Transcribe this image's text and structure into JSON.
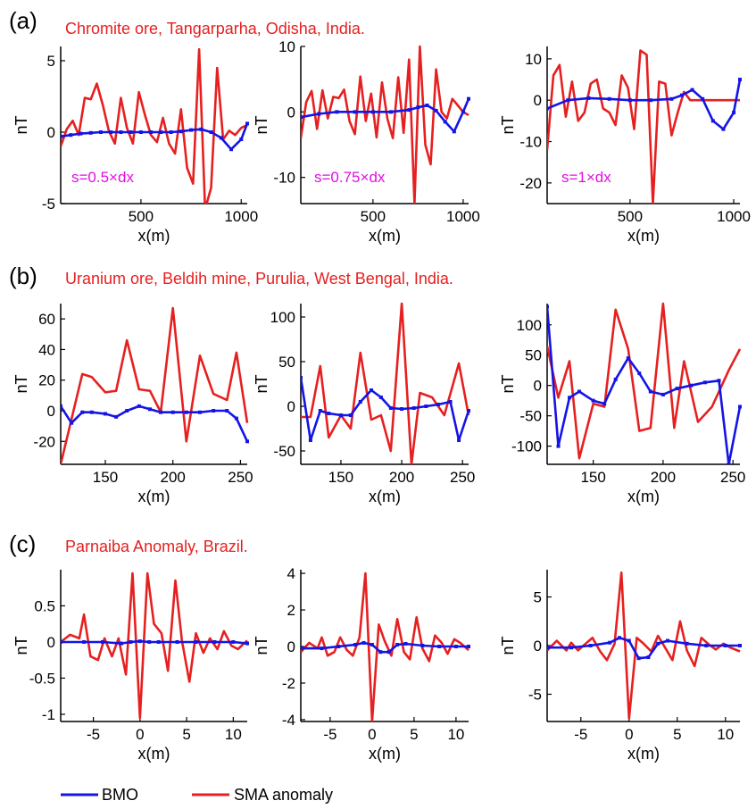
{
  "colors": {
    "bmo": "#1414e6",
    "sma": "#e62020",
    "title": "#e62020",
    "annotation": "#e010e0"
  },
  "legend": {
    "bmo_label": "BMO",
    "sma_label": "SMA anomaly"
  },
  "rows": [
    {
      "label": "(a)",
      "title": "Chromite ore, Tangarparha, Odisha, India."
    },
    {
      "label": "(b)",
      "title": "Uranium ore, Beldih mine, Purulia, West Bengal, India."
    },
    {
      "label": "(c)",
      "title": "Parnaiba Anomaly, Brazil."
    }
  ],
  "chart_data": [
    {
      "type": "line",
      "row": 0,
      "col": 0,
      "xlabel": "x(m)",
      "ylabel": "nT",
      "xlim": [
        100,
        1030
      ],
      "ylim": [
        -5,
        6
      ],
      "xticks": [
        500,
        1000
      ],
      "yticks": [
        -5,
        0,
        5
      ],
      "annotation": "s=0.5×dx",
      "series": [
        {
          "name": "BMO",
          "x": [
            100,
            150,
            200,
            250,
            300,
            350,
            400,
            450,
            500,
            550,
            600,
            650,
            700,
            750,
            800,
            850,
            900,
            950,
            1000,
            1030
          ],
          "y": [
            -0.3,
            -0.2,
            -0.1,
            -0.05,
            0,
            0,
            0,
            0,
            0,
            0,
            0,
            0,
            0.05,
            0.15,
            0.2,
            0,
            -0.4,
            -1.2,
            -0.5,
            0.6
          ]
        },
        {
          "name": "SMA anomaly",
          "x": [
            100,
            130,
            160,
            190,
            220,
            250,
            280,
            310,
            340,
            370,
            400,
            430,
            460,
            490,
            520,
            550,
            580,
            610,
            640,
            670,
            700,
            730,
            760,
            790,
            820,
            850,
            880,
            910,
            940,
            970,
            1000,
            1030
          ],
          "y": [
            -1,
            0.2,
            0.8,
            -0.2,
            2.4,
            2.3,
            3.4,
            1.9,
            0.1,
            -0.8,
            2.4,
            0.3,
            -0.8,
            2.8,
            1.2,
            -0.2,
            -0.7,
            1,
            -0.8,
            -1.5,
            1.6,
            -2.5,
            -3.6,
            5.8,
            -5.4,
            -3.9,
            4.5,
            -0.5,
            0.1,
            -0.2,
            0.3,
            0.5
          ]
        }
      ]
    },
    {
      "type": "line",
      "row": 0,
      "col": 1,
      "xlabel": "x(m)",
      "ylabel": "nT",
      "xlim": [
        100,
        1030
      ],
      "ylim": [
        -14,
        10
      ],
      "xticks": [
        500,
        1000
      ],
      "yticks": [
        -10,
        0,
        10
      ],
      "annotation": "s=0.75×dx",
      "series": [
        {
          "name": "BMO",
          "x": [
            100,
            200,
            300,
            400,
            500,
            600,
            700,
            750,
            800,
            850,
            900,
            950,
            1000,
            1030
          ],
          "y": [
            -0.8,
            -0.3,
            0,
            0,
            0,
            0,
            0.3,
            0.7,
            1,
            0.2,
            -1.5,
            -3,
            0,
            2
          ]
        },
        {
          "name": "SMA anomaly",
          "x": [
            100,
            130,
            160,
            190,
            220,
            250,
            280,
            310,
            340,
            370,
            400,
            430,
            460,
            490,
            520,
            550,
            580,
            610,
            640,
            670,
            700,
            730,
            760,
            790,
            820,
            850,
            880,
            910,
            940,
            970,
            1000,
            1030
          ],
          "y": [
            -4,
            1.5,
            3.2,
            -2.6,
            3.3,
            -1,
            2.3,
            2.1,
            3.4,
            -1.4,
            -3.4,
            5.4,
            -1.4,
            2.8,
            -3.9,
            4.5,
            -1,
            -4,
            5.3,
            -3.2,
            8,
            -14,
            10,
            -5,
            -8,
            6.5,
            0,
            -1,
            2,
            1,
            0,
            -0.5
          ]
        }
      ]
    },
    {
      "type": "line",
      "row": 0,
      "col": 2,
      "xlabel": "x(m)",
      "ylabel": "nT",
      "xlim": [
        100,
        1030
      ],
      "ylim": [
        -25,
        13
      ],
      "xticks": [
        500,
        1000
      ],
      "yticks": [
        -20,
        -10,
        0,
        10
      ],
      "annotation": "s=1×dx",
      "series": [
        {
          "name": "BMO",
          "x": [
            100,
            200,
            300,
            400,
            500,
            600,
            700,
            750,
            800,
            850,
            900,
            950,
            1000,
            1030
          ],
          "y": [
            -2,
            0,
            0.5,
            0.3,
            0,
            0,
            0.3,
            1.2,
            2.5,
            0.3,
            -5,
            -7,
            -3,
            5
          ]
        },
        {
          "name": "SMA anomaly",
          "x": [
            100,
            130,
            160,
            190,
            220,
            250,
            280,
            310,
            340,
            370,
            400,
            430,
            460,
            490,
            520,
            550,
            580,
            610,
            640,
            670,
            700,
            730,
            760,
            790,
            820,
            850,
            880,
            910,
            940,
            970,
            1000,
            1030
          ],
          "y": [
            -12,
            6,
            8.5,
            -4,
            4.5,
            -5,
            -3,
            4,
            5,
            -2,
            -3,
            -6,
            6,
            3,
            -7,
            12,
            11,
            -25,
            4.5,
            4,
            -8.5,
            -3,
            2,
            0,
            0,
            0,
            0,
            0,
            0,
            0,
            0,
            0
          ]
        }
      ]
    },
    {
      "type": "line",
      "row": 1,
      "col": 0,
      "xlabel": "x(m)",
      "ylabel": "nT",
      "xlim": [
        117,
        255
      ],
      "ylim": [
        -35,
        70
      ],
      "xticks": [
        150,
        200,
        250
      ],
      "yticks": [
        -20,
        0,
        20,
        40,
        60
      ],
      "series": [
        {
          "name": "BMO",
          "x": [
            117,
            125,
            133,
            140,
            150,
            158,
            166,
            175,
            183,
            191,
            200,
            210,
            220,
            230,
            240,
            247,
            255
          ],
          "y": [
            3,
            -8,
            -1,
            -1,
            -2,
            -4,
            0,
            3,
            1,
            -1,
            -1,
            -1,
            -1,
            0,
            0,
            -5,
            -20
          ]
        },
        {
          "name": "SMA anomaly",
          "x": [
            117,
            133,
            140,
            150,
            158,
            166,
            175,
            183,
            191,
            200,
            210,
            220,
            230,
            240,
            247,
            255
          ],
          "y": [
            -35,
            24,
            22,
            12,
            13,
            46,
            14,
            13,
            -1,
            67,
            -20,
            36,
            11,
            7,
            38,
            -8
          ]
        }
      ]
    },
    {
      "type": "line",
      "row": 1,
      "col": 1,
      "xlabel": "x(m)",
      "ylabel": "nT",
      "xlim": [
        117,
        255
      ],
      "ylim": [
        -65,
        115
      ],
      "xticks": [
        150,
        200,
        250
      ],
      "yticks": [
        -50,
        0,
        50,
        100
      ],
      "series": [
        {
          "name": "BMO",
          "x": [
            117,
            125,
            133,
            140,
            150,
            158,
            166,
            175,
            183,
            191,
            200,
            210,
            220,
            230,
            240,
            247,
            255
          ],
          "y": [
            32,
            -38,
            -5,
            -8,
            -10,
            -10,
            5,
            18,
            10,
            -2,
            -3,
            -2,
            0,
            2,
            5,
            -38,
            -5
          ]
        },
        {
          "name": "SMA anomaly",
          "x": [
            117,
            125,
            133,
            140,
            150,
            158,
            166,
            175,
            183,
            191,
            200,
            208,
            215,
            225,
            235,
            247,
            255
          ],
          "y": [
            -12,
            -12,
            45,
            -35,
            -10,
            -25,
            60,
            -15,
            -10,
            -50,
            115,
            -65,
            15,
            10,
            -10,
            48,
            -10
          ]
        }
      ]
    },
    {
      "type": "line",
      "row": 1,
      "col": 2,
      "xlabel": "x(m)",
      "ylabel": "nT",
      "xlim": [
        117,
        255
      ],
      "ylim": [
        -130,
        135
      ],
      "xticks": [
        150,
        200,
        250
      ],
      "yticks": [
        -100,
        -50,
        0,
        50,
        100
      ],
      "series": [
        {
          "name": "BMO",
          "x": [
            117,
            125,
            133,
            140,
            150,
            158,
            166,
            175,
            183,
            191,
            200,
            210,
            220,
            230,
            240,
            247,
            255
          ],
          "y": [
            130,
            -100,
            -20,
            -10,
            -25,
            -30,
            10,
            45,
            20,
            -10,
            -15,
            -5,
            0,
            5,
            8,
            -130,
            -35
          ]
        },
        {
          "name": "SMA anomaly",
          "x": [
            117,
            125,
            133,
            140,
            150,
            158,
            166,
            175,
            183,
            191,
            200,
            208,
            215,
            225,
            235,
            247,
            255
          ],
          "y": [
            65,
            -20,
            40,
            -120,
            -30,
            -35,
            125,
            60,
            -75,
            -70,
            135,
            -70,
            40,
            -60,
            -35,
            25,
            60
          ]
        }
      ]
    },
    {
      "type": "line",
      "row": 2,
      "col": 0,
      "xlabel": "x(m)",
      "ylabel": "nT",
      "xlim": [
        -8.5,
        11.5
      ],
      "ylim": [
        -1.1,
        1.0
      ],
      "xticks": [
        -5,
        0,
        5,
        10
      ],
      "yticks": [
        -1,
        -0.5,
        0,
        0.5
      ],
      "series": [
        {
          "name": "BMO",
          "x": [
            -8.5,
            -6,
            -4,
            -2,
            -1,
            0,
            1,
            2,
            4,
            6,
            8,
            10,
            11.5
          ],
          "y": [
            0,
            0,
            0,
            -0.02,
            0,
            0.01,
            0,
            0,
            0,
            0,
            0,
            0,
            -0.02
          ]
        },
        {
          "name": "SMA anomaly",
          "x": [
            -8.5,
            -7.5,
            -6.5,
            -6,
            -5.3,
            -4.5,
            -3.8,
            -3,
            -2.3,
            -1.5,
            -0.8,
            0,
            0.8,
            1.5,
            2.3,
            3,
            3.8,
            4.5,
            5.3,
            6,
            6.8,
            7.5,
            8.3,
            9,
            9.8,
            10.5,
            11.5
          ],
          "y": [
            0,
            0.1,
            0.05,
            0.38,
            -0.2,
            -0.25,
            0.05,
            -0.2,
            0.05,
            -0.45,
            0.95,
            -1.05,
            0.95,
            0.25,
            0.12,
            -0.4,
            0.85,
            0.02,
            -0.55,
            0.12,
            -0.15,
            0.05,
            -0.1,
            0.15,
            -0.05,
            -0.1,
            0.02
          ]
        }
      ]
    },
    {
      "type": "line",
      "row": 2,
      "col": 1,
      "xlabel": "x(m)",
      "ylabel": "nT",
      "xlim": [
        -8.5,
        11.5
      ],
      "ylim": [
        -4.1,
        4.2
      ],
      "xticks": [
        -5,
        0,
        5,
        10
      ],
      "yticks": [
        -4,
        -2,
        0,
        2,
        4
      ],
      "series": [
        {
          "name": "BMO",
          "x": [
            -8.5,
            -6,
            -4,
            -2,
            -1,
            0,
            1,
            2,
            3,
            4,
            6,
            8,
            10,
            11.5
          ],
          "y": [
            -0.1,
            -0.1,
            0,
            0.1,
            0.2,
            0.1,
            -0.3,
            -0.3,
            0.1,
            0.15,
            0.05,
            0,
            0,
            0
          ]
        },
        {
          "name": "SMA anomaly",
          "x": [
            -8.5,
            -7.5,
            -6.5,
            -6,
            -5.3,
            -4.5,
            -3.8,
            -3,
            -2.3,
            -1.5,
            -0.8,
            0,
            0.8,
            1.5,
            2.3,
            3,
            3.8,
            4.5,
            5.3,
            6,
            6.8,
            7.5,
            8.3,
            9,
            9.8,
            10.5,
            11.5
          ],
          "y": [
            -0.3,
            0.2,
            -0.1,
            0.5,
            -0.5,
            -0.3,
            0.5,
            -0.2,
            -0.5,
            0.5,
            4,
            -4.1,
            1.2,
            0.3,
            -0.5,
            1.5,
            -0.3,
            -0.7,
            1.6,
            -0.1,
            -0.8,
            0.6,
            0.2,
            -0.4,
            0.4,
            0.2,
            -0.2
          ]
        }
      ]
    },
    {
      "type": "line",
      "row": 2,
      "col": 2,
      "xlabel": "x(m)",
      "ylabel": "nT",
      "xlim": [
        -8.5,
        11.5
      ],
      "ylim": [
        -7.8,
        7.8
      ],
      "xticks": [
        -5,
        0,
        5,
        10
      ],
      "yticks": [
        -5,
        0,
        5
      ],
      "series": [
        {
          "name": "BMO",
          "x": [
            -8.5,
            -6,
            -4,
            -2,
            -1,
            0,
            1,
            2,
            3,
            4,
            6,
            8,
            10,
            11.5
          ],
          "y": [
            -0.2,
            -0.2,
            0,
            0.3,
            0.8,
            0.5,
            -1.3,
            -1.2,
            0.2,
            0.5,
            0.2,
            0,
            0,
            0
          ]
        },
        {
          "name": "SMA anomaly",
          "x": [
            -8.5,
            -7.5,
            -6.5,
            -6,
            -5.3,
            -4.5,
            -3.8,
            -3,
            -2.3,
            -1.5,
            -0.8,
            0,
            0.8,
            1.5,
            2.3,
            3,
            3.8,
            4.5,
            5.3,
            6,
            6.8,
            7.5,
            8.3,
            9,
            9.8,
            10.5,
            11.5
          ],
          "y": [
            -0.5,
            0.5,
            -0.5,
            0.3,
            -0.5,
            0.2,
            0.8,
            -0.6,
            -1.5,
            0.2,
            7.5,
            -7.5,
            0.8,
            0.2,
            -0.6,
            1,
            -0.3,
            -1.5,
            2.5,
            -0.5,
            -2.1,
            0.8,
            0.1,
            -0.4,
            0.2,
            -0.2,
            -0.6
          ]
        }
      ]
    }
  ]
}
